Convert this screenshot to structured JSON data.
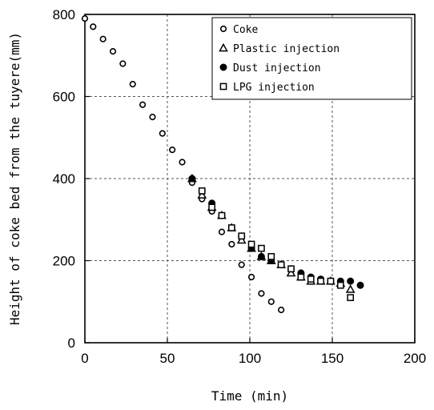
{
  "chart_data": {
    "type": "scatter",
    "xlabel": "Time (min)",
    "ylabel": "Height of coke bed from the tuyere(mm)",
    "xlim": [
      0,
      200
    ],
    "ylim": [
      0,
      800
    ],
    "xticks": [
      0,
      50,
      100,
      150,
      200
    ],
    "yticks": [
      0,
      200,
      400,
      600,
      800
    ],
    "grid": true,
    "grid_style": "dashed",
    "legend_position": "top-right",
    "series": [
      {
        "name": "Coke",
        "marker": "open-circle",
        "points": [
          [
            0,
            790
          ],
          [
            5,
            770
          ],
          [
            11,
            740
          ],
          [
            17,
            710
          ],
          [
            23,
            680
          ],
          [
            29,
            630
          ],
          [
            35,
            580
          ],
          [
            41,
            550
          ],
          [
            47,
            510
          ],
          [
            53,
            470
          ],
          [
            59,
            440
          ],
          [
            65,
            390
          ],
          [
            71,
            350
          ],
          [
            77,
            320
          ],
          [
            83,
            270
          ],
          [
            89,
            240
          ],
          [
            95,
            190
          ],
          [
            101,
            160
          ],
          [
            107,
            120
          ],
          [
            113,
            100
          ],
          [
            119,
            80
          ]
        ]
      },
      {
        "name": "Plastic injection",
        "marker": "open-triangle",
        "points": [
          [
            65,
            400
          ],
          [
            71,
            360
          ],
          [
            77,
            330
          ],
          [
            83,
            310
          ],
          [
            89,
            280
          ],
          [
            95,
            250
          ],
          [
            101,
            230
          ],
          [
            107,
            210
          ],
          [
            113,
            200
          ],
          [
            119,
            190
          ],
          [
            125,
            170
          ],
          [
            131,
            160
          ],
          [
            137,
            150
          ],
          [
            143,
            150
          ],
          [
            149,
            150
          ],
          [
            155,
            145
          ],
          [
            161,
            130
          ]
        ]
      },
      {
        "name": "Dust injection",
        "marker": "filled-circle",
        "points": [
          [
            65,
            400
          ],
          [
            71,
            370
          ],
          [
            77,
            340
          ],
          [
            83,
            310
          ],
          [
            89,
            280
          ],
          [
            95,
            260
          ],
          [
            101,
            230
          ],
          [
            107,
            210
          ],
          [
            113,
            200
          ],
          [
            119,
            190
          ],
          [
            125,
            180
          ],
          [
            131,
            170
          ],
          [
            137,
            160
          ],
          [
            143,
            155
          ],
          [
            149,
            150
          ],
          [
            155,
            150
          ],
          [
            161,
            150
          ],
          [
            167,
            140
          ]
        ]
      },
      {
        "name": "LPG injection",
        "marker": "open-square",
        "points": [
          [
            71,
            370
          ],
          [
            77,
            330
          ],
          [
            83,
            310
          ],
          [
            89,
            280
          ],
          [
            95,
            260
          ],
          [
            101,
            240
          ],
          [
            107,
            230
          ],
          [
            113,
            210
          ],
          [
            119,
            190
          ],
          [
            125,
            180
          ],
          [
            131,
            160
          ],
          [
            137,
            155
          ],
          [
            143,
            150
          ],
          [
            149,
            150
          ],
          [
            155,
            140
          ],
          [
            161,
            110
          ]
        ]
      }
    ]
  }
}
